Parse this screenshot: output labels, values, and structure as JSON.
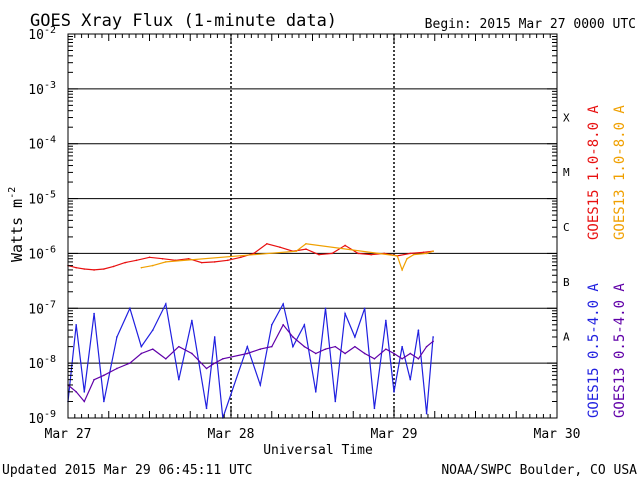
{
  "chart_data": {
    "type": "line",
    "title": "GOES Xray Flux (1-minute data)",
    "begin_label": "Begin:  2015 Mar 27 0000 UTC",
    "xlabel": "Universal Time",
    "ylabel": "Watts m",
    "ylabel_sup": "-2",
    "y_scale": "log",
    "ylim": [
      1e-09,
      0.01
    ],
    "y_ticks": [
      {
        "value": 1e-09,
        "mant": "10",
        "exp": "-9"
      },
      {
        "value": 1e-08,
        "mant": "10",
        "exp": "-8"
      },
      {
        "value": 1e-07,
        "mant": "10",
        "exp": "-7"
      },
      {
        "value": 1e-06,
        "mant": "10",
        "exp": "-6"
      },
      {
        "value": 1e-05,
        "mant": "10",
        "exp": "-5"
      },
      {
        "value": 0.0001,
        "mant": "10",
        "exp": "-4"
      },
      {
        "value": 0.001,
        "mant": "10",
        "exp": "-3"
      },
      {
        "value": 0.01,
        "mant": "10",
        "exp": "-2"
      }
    ],
    "x_ticks": [
      "Mar 27",
      "Mar 28",
      "Mar 29",
      "Mar 30"
    ],
    "xlim_days": [
      0,
      3
    ],
    "grid": true,
    "flare_classes": [
      {
        "label": "A",
        "value": 1e-08
      },
      {
        "label": "B",
        "value": 1e-07
      },
      {
        "label": "C",
        "value": 1e-06
      },
      {
        "label": "M",
        "value": 1e-05
      },
      {
        "label": "X",
        "value": 0.0001
      }
    ],
    "legend": [
      {
        "text": "GOES15 1.0-8.0 A",
        "color": "#e81010"
      },
      {
        "text": "GOES13 1.0-8.0 A",
        "color": "#f0a000"
      },
      {
        "text": "GOES15 0.5-4.0 A",
        "color": "#2020e0"
      },
      {
        "text": "GOES13 0.5-4.0 A",
        "color": "#6000a8"
      }
    ],
    "series": [
      {
        "name": "GOES15 1.0-8.0 A",
        "color": "#e81010",
        "x": [
          0.0,
          0.05,
          0.1,
          0.16,
          0.22,
          0.28,
          0.35,
          0.42,
          0.5,
          0.58,
          0.66,
          0.74,
          0.82,
          0.9,
          0.98,
          1.06,
          1.14,
          1.22,
          1.3,
          1.38,
          1.46,
          1.54,
          1.62,
          1.7,
          1.78,
          1.86,
          1.94,
          2.02,
          2.1,
          2.18,
          2.24
        ],
        "y": [
          6e-07,
          5.5e-07,
          5.2e-07,
          5e-07,
          5.2e-07,
          5.8e-07,
          6.8e-07,
          7.5e-07,
          8.5e-07,
          8e-07,
          7.5e-07,
          8e-07,
          6.8e-07,
          7e-07,
          7.5e-07,
          8.5e-07,
          1e-06,
          1.5e-06,
          1.3e-06,
          1.1e-06,
          1.2e-06,
          9.5e-07,
          1e-06,
          1.4e-06,
          1e-06,
          9.5e-07,
          1e-06,
          9e-07,
          1e-06,
          1.05e-06,
          1.1e-06
        ]
      },
      {
        "name": "GOES13 1.0-8.0 A",
        "color": "#f0a000",
        "x": [
          0.45,
          0.52,
          0.6,
          1.4,
          1.46,
          2.02,
          2.05,
          2.08,
          2.12,
          2.2,
          2.24
        ],
        "y": [
          5.5e-07,
          6e-07,
          7e-07,
          1.1e-06,
          1.5e-06,
          9e-07,
          5e-07,
          8e-07,
          9.5e-07,
          1e-06,
          1.1e-06
        ]
      },
      {
        "name": "GOES15 0.5-4.0 A",
        "color": "#2020e0",
        "x": [
          0.0,
          0.05,
          0.1,
          0.16,
          0.22,
          0.3,
          0.38,
          0.45,
          0.52,
          0.6,
          0.68,
          0.76,
          0.85,
          0.9,
          0.95,
          1.1,
          1.18,
          1.25,
          1.32,
          1.38,
          1.45,
          1.52,
          1.58,
          1.64,
          1.7,
          1.76,
          1.82,
          1.88,
          1.95,
          2.0,
          2.05,
          2.1,
          2.15,
          2.2,
          2.24
        ],
        "y": [
          2e-09,
          5e-08,
          3e-09,
          8e-08,
          2e-09,
          3e-08,
          1e-07,
          2e-08,
          4e-08,
          1.2e-07,
          5e-09,
          6e-08,
          1.5e-09,
          3e-08,
          1e-09,
          2e-08,
          4e-09,
          5e-08,
          1.2e-07,
          2e-08,
          5e-08,
          3e-09,
          1e-07,
          2e-09,
          8e-08,
          3e-08,
          1e-07,
          1.5e-09,
          6e-08,
          3e-09,
          2e-08,
          5e-09,
          4e-08,
          1.2e-09,
          3e-08
        ]
      },
      {
        "name": "GOES13 0.5-4.0 A",
        "color": "#6000a8",
        "x": [
          0.0,
          0.05,
          0.1,
          0.16,
          0.22,
          0.3,
          0.38,
          0.45,
          0.52,
          0.6,
          0.68,
          0.76,
          0.85,
          0.9,
          0.95,
          1.1,
          1.18,
          1.25,
          1.32,
          1.38,
          1.45,
          1.52,
          1.58,
          1.64,
          1.7,
          1.76,
          1.82,
          1.88,
          1.95,
          2.0,
          2.05,
          2.1,
          2.15,
          2.2,
          2.24
        ],
        "y": [
          4e-09,
          3e-09,
          2e-09,
          5e-09,
          6e-09,
          8e-09,
          1e-08,
          1.5e-08,
          1.8e-08,
          1.2e-08,
          2e-08,
          1.5e-08,
          8e-09,
          1e-08,
          1.2e-08,
          1.5e-08,
          1.8e-08,
          2e-08,
          5e-08,
          3e-08,
          2e-08,
          1.5e-08,
          1.8e-08,
          2e-08,
          1.5e-08,
          2e-08,
          1.5e-08,
          1.2e-08,
          1.8e-08,
          1.5e-08,
          1.2e-08,
          1.5e-08,
          1.2e-08,
          2e-08,
          2.5e-08
        ]
      }
    ],
    "updated": "Updated 2015 Mar 29 06:45:11 UTC",
    "credit": "NOAA/SWPC Boulder, CO USA"
  }
}
